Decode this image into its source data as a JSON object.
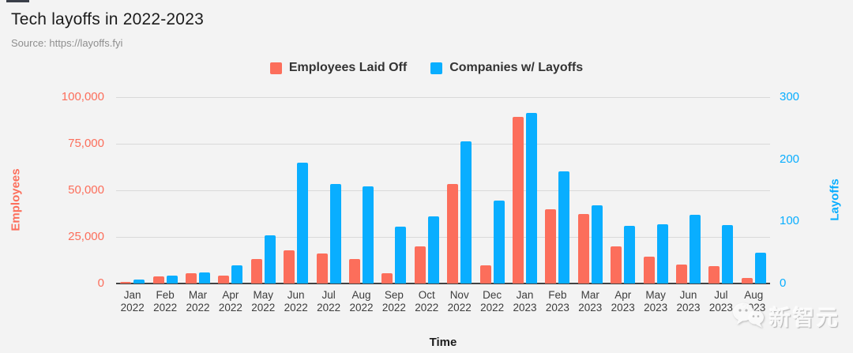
{
  "header": {
    "title": "Tech layoffs in 2022-2023",
    "source": "Source: https://layoffs.fyi"
  },
  "colors": {
    "background": "#F3F3F3",
    "employees": "#FC6E5B",
    "companies": "#09AEFF",
    "gridline": "#D9D9D9",
    "axis_line": "#424242",
    "x_tick_text": "#3d3d3d"
  },
  "legend": {
    "items": [
      {
        "label": "Employees Laid Off",
        "color": "#FC6E5B"
      },
      {
        "label": "Companies w/ Layoffs",
        "color": "#09AEFF"
      }
    ]
  },
  "chart_data": {
    "type": "bar",
    "title": "Tech layoffs in 2022-2023",
    "xlabel": "Time",
    "grid": true,
    "legend_position": "top",
    "categories": [
      {
        "month": "Jan",
        "year": "2022"
      },
      {
        "month": "Feb",
        "year": "2022"
      },
      {
        "month": "Mar",
        "year": "2022"
      },
      {
        "month": "Apr",
        "year": "2022"
      },
      {
        "month": "May",
        "year": "2022"
      },
      {
        "month": "Jun",
        "year": "2022"
      },
      {
        "month": "Jul",
        "year": "2022"
      },
      {
        "month": "Aug",
        "year": "2022"
      },
      {
        "month": "Sep",
        "year": "2022"
      },
      {
        "month": "Oct",
        "year": "2022"
      },
      {
        "month": "Nov",
        "year": "2022"
      },
      {
        "month": "Dec",
        "year": "2022"
      },
      {
        "month": "Jan",
        "year": "2023"
      },
      {
        "month": "Feb",
        "year": "2023"
      },
      {
        "month": "Mar",
        "year": "2023"
      },
      {
        "month": "Apr",
        "year": "2023"
      },
      {
        "month": "May",
        "year": "2023"
      },
      {
        "month": "Jun",
        "year": "2023"
      },
      {
        "month": "Jul",
        "year": "2023"
      },
      {
        "month": "Aug",
        "year": "2023"
      }
    ],
    "series": [
      {
        "name": "Employees Laid Off",
        "axis": "left",
        "color": "#FC6E5B",
        "values": [
          1000,
          3800,
          5400,
          4200,
          13000,
          18000,
          16300,
          13200,
          5500,
          20000,
          53500,
          9600,
          89500,
          40000,
          37500,
          20000,
          14500,
          10200,
          9500,
          3100
        ]
      },
      {
        "name": "Companies w/ Layoffs",
        "axis": "right",
        "color": "#09AEFF",
        "values": [
          6,
          13,
          18,
          29,
          78,
          195,
          160,
          157,
          92,
          108,
          229,
          133,
          274,
          181,
          126,
          93,
          95,
          111,
          94,
          49
        ]
      }
    ],
    "y_left": {
      "label": "Employees",
      "color": "#FC6E5B",
      "min": 0,
      "max": 100000,
      "ticks": [
        {
          "v": 100000,
          "label": "100,000"
        },
        {
          "v": 75000,
          "label": "75,000"
        },
        {
          "v": 50000,
          "label": "50,000"
        },
        {
          "v": 25000,
          "label": "25,000"
        },
        {
          "v": 0,
          "label": "0"
        }
      ]
    },
    "y_right": {
      "label": "Layoffs",
      "color": "#09AEFF",
      "min": 0,
      "max": 300,
      "ticks": [
        {
          "v": 300,
          "label": "300"
        },
        {
          "v": 200,
          "label": "200"
        },
        {
          "v": 100,
          "label": "100"
        },
        {
          "v": 0,
          "label": "0"
        }
      ]
    }
  },
  "watermark": {
    "icon": "wechat-bubbles-icon",
    "text": "新智元"
  }
}
